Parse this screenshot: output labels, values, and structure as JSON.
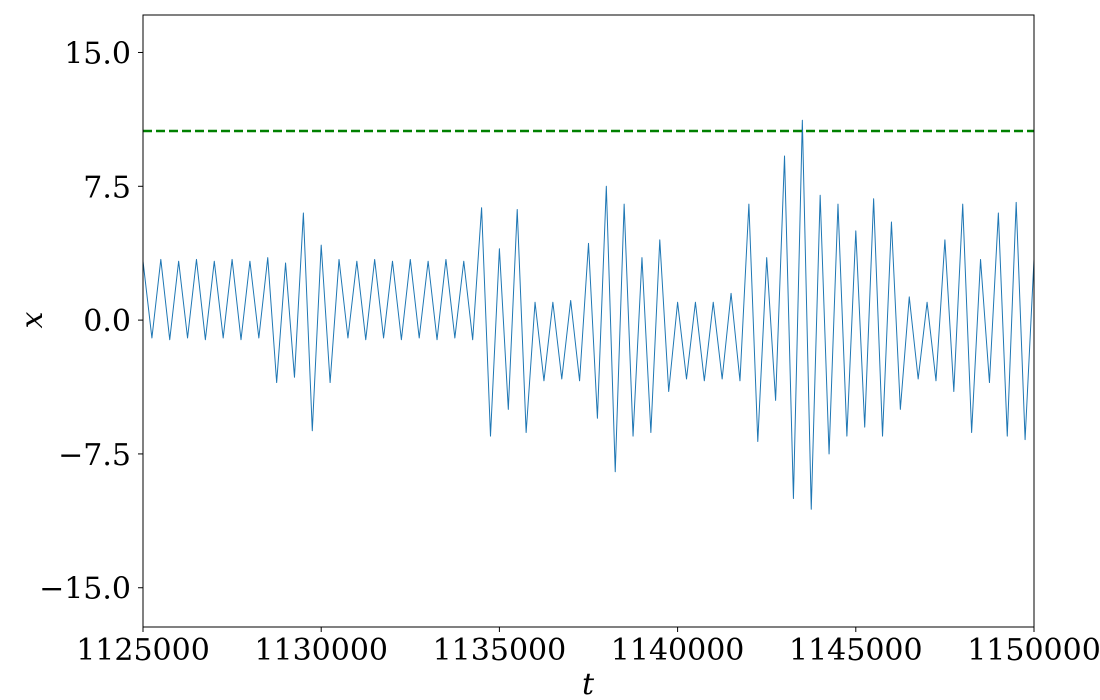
{
  "chart_data": {
    "type": "line",
    "xlabel": "t",
    "ylabel": "x",
    "xlim": [
      1125000,
      1150000
    ],
    "ylim": [
      -17.2,
      17.1
    ],
    "xticks": [
      1125000,
      1130000,
      1135000,
      1140000,
      1145000,
      1150000
    ],
    "yticks": [
      {
        "value": -15,
        "label": "−15.0"
      },
      {
        "value": -7.5,
        "label": "−7.5"
      },
      {
        "value": 0,
        "label": "0.0"
      },
      7.5,
      {
        "value": 15,
        "label": "15.0"
      }
    ],
    "grid": false,
    "threshold": {
      "value": 10.6,
      "color": "#008000"
    },
    "series": [
      {
        "color": "#1f77b4",
        "x": [
          1125000,
          1125250,
          1125500,
          1125750,
          1126000,
          1126250,
          1126500,
          1126750,
          1127000,
          1127250,
          1127500,
          1127750,
          1128000,
          1128250,
          1128500,
          1128750,
          1129000,
          1129250,
          1129500,
          1129750,
          1130000,
          1130250,
          1130500,
          1130750,
          1131000,
          1131250,
          1131500,
          1131750,
          1132000,
          1132250,
          1132500,
          1132750,
          1133000,
          1133250,
          1133500,
          1133750,
          1134000,
          1134250,
          1134500,
          1134750,
          1135000,
          1135250,
          1135500,
          1135750,
          1136000,
          1136250,
          1136500,
          1136750,
          1137000,
          1137250,
          1137500,
          1137750,
          1138000,
          1138250,
          1138500,
          1138750,
          1139000,
          1139250,
          1139500,
          1139750,
          1140000,
          1140250,
          1140500,
          1140750,
          1141000,
          1141250,
          1141500,
          1141750,
          1142000,
          1142250,
          1142500,
          1142750,
          1143000,
          1143250,
          1143500,
          1143750,
          1144000,
          1144250,
          1144500,
          1144750,
          1145000,
          1145250,
          1145500,
          1145750,
          1146000,
          1146250,
          1146500,
          1146750,
          1147000,
          1147250,
          1147500,
          1147750,
          1148000,
          1148250,
          1148500,
          1148750,
          1149000,
          1149250,
          1149500,
          1149750,
          1150000
        ],
        "values": [
          3.3,
          -1.0,
          3.4,
          -1.1,
          3.3,
          -1.0,
          3.4,
          -1.1,
          3.3,
          -1.0,
          3.4,
          -1.1,
          3.3,
          -1.0,
          3.5,
          -3.5,
          3.2,
          -3.2,
          6.0,
          -6.2,
          4.2,
          -3.5,
          3.4,
          -1.0,
          3.3,
          -1.1,
          3.4,
          -1.0,
          3.3,
          -1.1,
          3.4,
          -1.0,
          3.3,
          -1.1,
          3.4,
          -1.0,
          3.3,
          -1.1,
          6.3,
          -6.5,
          4.0,
          -5.0,
          6.2,
          -6.3,
          1.0,
          -3.4,
          1.0,
          -3.3,
          1.1,
          -3.4,
          4.3,
          -5.5,
          7.5,
          -8.5,
          6.5,
          -6.5,
          3.5,
          -6.3,
          4.5,
          -4.0,
          1.0,
          -3.3,
          1.0,
          -3.4,
          1.0,
          -3.3,
          1.5,
          -3.4,
          6.5,
          -6.8,
          3.5,
          -4.5,
          9.2,
          -10.0,
          11.2,
          -10.6,
          7.0,
          -7.5,
          6.5,
          -6.5,
          5.0,
          -6.0,
          6.8,
          -6.5,
          5.5,
          -5.0,
          1.3,
          -3.3,
          1.0,
          -3.4,
          4.5,
          -4.0,
          6.5,
          -6.3,
          3.4,
          -3.5,
          6.0,
          -6.5,
          6.6,
          -6.7,
          3.4
        ]
      }
    ]
  }
}
